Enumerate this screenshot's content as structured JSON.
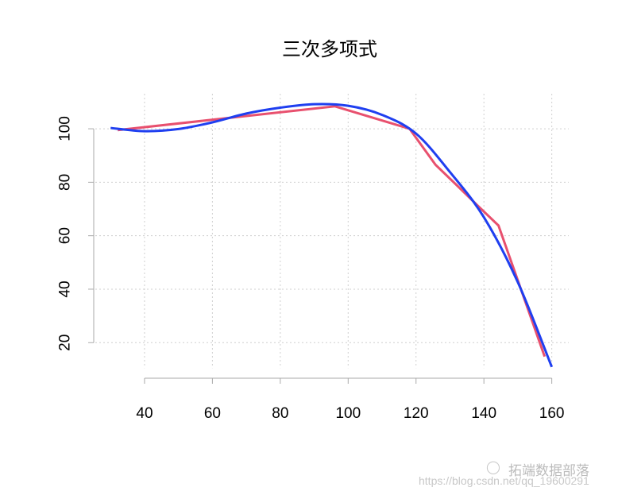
{
  "chart_data": {
    "type": "line",
    "title": "三次多项式",
    "xlabel": "",
    "ylabel": "",
    "xlim": [
      25.5,
      165
    ],
    "ylim": [
      6.7,
      113.1
    ],
    "x_ticks": [
      40,
      60,
      80,
      100,
      120,
      140,
      160
    ],
    "y_ticks": [
      20,
      40,
      60,
      80,
      100
    ],
    "grid": true,
    "series": [
      {
        "color": "#e8506e",
        "x": [
          32.1,
          96.1,
          118.1,
          125.7,
          132.4,
          137.8,
          144.3,
          157.9
        ],
        "y": [
          99.5,
          108.4,
          100.0,
          86.6,
          78.4,
          71.7,
          63.8,
          14.8
        ]
      },
      {
        "color": "#1f3ff0",
        "x": [
          30,
          40,
          50,
          60,
          70,
          80,
          90,
          100,
          110,
          120,
          130,
          140,
          150,
          160
        ],
        "y": [
          100.3,
          99.1,
          99.9,
          102.4,
          105.7,
          107.9,
          109.2,
          108.6,
          105.2,
          98.2,
          83.8,
          66.9,
          42.6,
          10.9
        ]
      }
    ]
  },
  "watermark": {
    "brand": "拓端数据部落",
    "url": "https://blog.csdn.net/qq_19600291"
  }
}
